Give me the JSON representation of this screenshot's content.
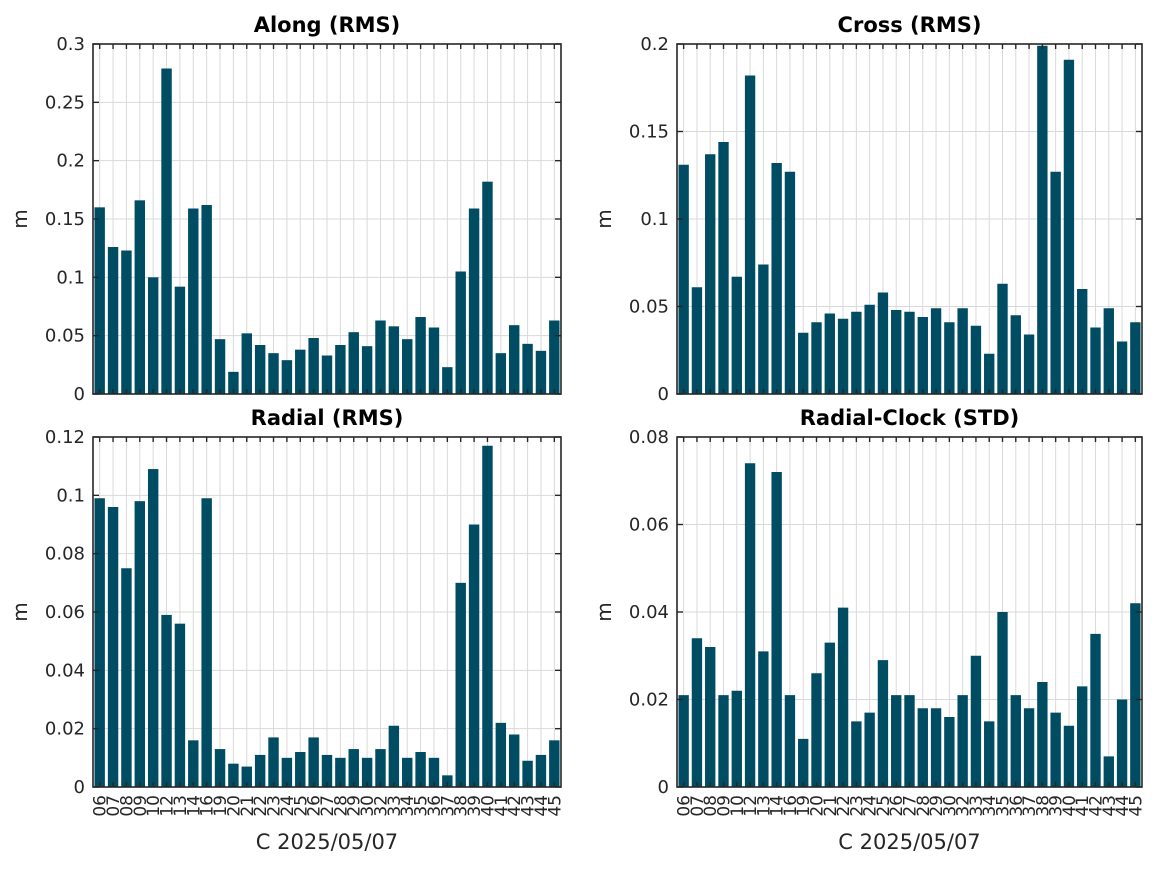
{
  "colors": {
    "bar": "#004c63",
    "axis": "#262626",
    "grid": "#d9d9d9"
  },
  "chart_data": [
    {
      "type": "bar",
      "title": "Along (RMS)",
      "ylabel": "m",
      "xlabel": "",
      "ylim": [
        0,
        0.3
      ],
      "yticks": [
        "0",
        "0.05",
        "0.1",
        "0.15",
        "0.2",
        "0.25",
        "0.3"
      ],
      "ytick_values": [
        0,
        0.05,
        0.1,
        0.15,
        0.2,
        0.25,
        0.3
      ],
      "categories": [
        "06",
        "07",
        "08",
        "09",
        "10",
        "12",
        "13",
        "14",
        "16",
        "19",
        "20",
        "21",
        "22",
        "23",
        "24",
        "25",
        "26",
        "27",
        "28",
        "29",
        "30",
        "32",
        "33",
        "34",
        "35",
        "36",
        "37",
        "38",
        "39",
        "40",
        "41",
        "42",
        "43",
        "44",
        "45"
      ],
      "show_xticklabels": false,
      "values": [
        0.16,
        0.126,
        0.123,
        0.166,
        0.1,
        0.279,
        0.092,
        0.159,
        0.162,
        0.047,
        0.019,
        0.052,
        0.042,
        0.035,
        0.029,
        0.038,
        0.048,
        0.033,
        0.042,
        0.053,
        0.041,
        0.063,
        0.058,
        0.047,
        0.066,
        0.057,
        0.023,
        0.105,
        0.159,
        0.182,
        0.035,
        0.059,
        0.043,
        0.037,
        0.063
      ],
      "grid": true
    },
    {
      "type": "bar",
      "title": "Cross (RMS)",
      "ylabel": "m",
      "xlabel": "",
      "ylim": [
        0,
        0.2
      ],
      "yticks": [
        "0",
        "0.05",
        "0.1",
        "0.15",
        "0.2"
      ],
      "ytick_values": [
        0,
        0.05,
        0.1,
        0.15,
        0.2
      ],
      "categories": [
        "06",
        "07",
        "08",
        "09",
        "10",
        "12",
        "13",
        "14",
        "16",
        "19",
        "20",
        "21",
        "22",
        "23",
        "24",
        "25",
        "26",
        "27",
        "28",
        "29",
        "30",
        "32",
        "33",
        "34",
        "35",
        "36",
        "37",
        "38",
        "39",
        "40",
        "41",
        "42",
        "43",
        "44",
        "45"
      ],
      "show_xticklabels": false,
      "values": [
        0.131,
        0.061,
        0.137,
        0.144,
        0.067,
        0.182,
        0.074,
        0.132,
        0.127,
        0.035,
        0.041,
        0.046,
        0.043,
        0.047,
        0.051,
        0.058,
        0.048,
        0.047,
        0.044,
        0.049,
        0.041,
        0.049,
        0.039,
        0.023,
        0.063,
        0.045,
        0.034,
        0.199,
        0.127,
        0.191,
        0.06,
        0.038,
        0.049,
        0.03,
        0.041
      ],
      "grid": true
    },
    {
      "type": "bar",
      "title": "Radial (RMS)",
      "ylabel": "m",
      "xlabel": "C 2025/05/07",
      "ylim": [
        0,
        0.12
      ],
      "yticks": [
        "0",
        "0.02",
        "0.04",
        "0.06",
        "0.08",
        "0.1",
        "0.12"
      ],
      "ytick_values": [
        0,
        0.02,
        0.04,
        0.06,
        0.08,
        0.1,
        0.12
      ],
      "categories": [
        "06",
        "07",
        "08",
        "09",
        "10",
        "12",
        "13",
        "14",
        "16",
        "19",
        "20",
        "21",
        "22",
        "23",
        "24",
        "25",
        "26",
        "27",
        "28",
        "29",
        "30",
        "32",
        "33",
        "34",
        "35",
        "36",
        "37",
        "38",
        "39",
        "40",
        "41",
        "42",
        "43",
        "44",
        "45"
      ],
      "show_xticklabels": true,
      "values": [
        0.099,
        0.096,
        0.075,
        0.098,
        0.109,
        0.059,
        0.056,
        0.016,
        0.099,
        0.013,
        0.008,
        0.007,
        0.011,
        0.017,
        0.01,
        0.012,
        0.017,
        0.011,
        0.01,
        0.013,
        0.01,
        0.013,
        0.021,
        0.01,
        0.012,
        0.01,
        0.004,
        0.07,
        0.09,
        0.117,
        0.022,
        0.018,
        0.009,
        0.011,
        0.016
      ],
      "grid": true
    },
    {
      "type": "bar",
      "title": "Radial-Clock (STD)",
      "ylabel": "m",
      "xlabel": "C 2025/05/07",
      "ylim": [
        0,
        0.08
      ],
      "yticks": [
        "0",
        "0.02",
        "0.04",
        "0.06",
        "0.08"
      ],
      "ytick_values": [
        0,
        0.02,
        0.04,
        0.06,
        0.08
      ],
      "categories": [
        "06",
        "07",
        "08",
        "09",
        "10",
        "12",
        "13",
        "14",
        "16",
        "19",
        "20",
        "21",
        "22",
        "23",
        "24",
        "25",
        "26",
        "27",
        "28",
        "29",
        "30",
        "32",
        "33",
        "34",
        "35",
        "36",
        "37",
        "38",
        "39",
        "40",
        "41",
        "42",
        "43",
        "44",
        "45"
      ],
      "show_xticklabels": true,
      "values": [
        0.021,
        0.034,
        0.032,
        0.021,
        0.022,
        0.074,
        0.031,
        0.072,
        0.021,
        0.011,
        0.026,
        0.033,
        0.041,
        0.015,
        0.017,
        0.029,
        0.021,
        0.021,
        0.018,
        0.018,
        0.016,
        0.021,
        0.03,
        0.015,
        0.04,
        0.021,
        0.018,
        0.024,
        0.017,
        0.014,
        0.023,
        0.035,
        0.007,
        0.02,
        0.042
      ],
      "grid": true
    }
  ]
}
